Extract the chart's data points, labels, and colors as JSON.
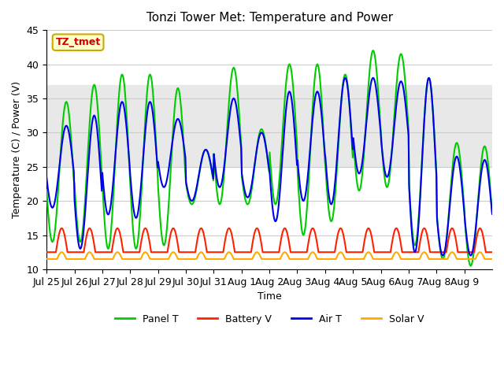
{
  "title": "Tonzi Tower Met: Temperature and Power",
  "xlabel": "Time",
  "ylabel": "Temperature (C) / Power (V)",
  "ylim": [
    10,
    45
  ],
  "n_days": 16,
  "xtick_labels": [
    "Jul 25",
    "Jul 26",
    "Jul 27",
    "Jul 28",
    "Jul 29",
    "Jul 30",
    "Jul 31",
    "Aug 1",
    "Aug 2",
    "Aug 3",
    "Aug 4",
    "Aug 5",
    "Aug 6",
    "Aug 7",
    "Aug 8",
    "Aug 9"
  ],
  "label_box_text": "TZ_tmet",
  "label_box_color": "#ffffcc",
  "label_box_edge_color": "#ccaa00",
  "label_text_color": "#cc0000",
  "series_panel_t_label": "Panel T",
  "series_panel_t_color": "#00cc00",
  "series_battery_v_label": "Battery V",
  "series_battery_v_color": "#ff2200",
  "series_air_t_label": "Air T",
  "series_air_t_color": "#0000ee",
  "series_solar_v_label": "Solar V",
  "series_solar_v_color": "#ffaa00",
  "linewidth": 1.5,
  "shaded_band": [
    25,
    37
  ],
  "shaded_color": "#e8e8e8",
  "background_color": "#ffffff",
  "grid_color": "#cccccc",
  "panel_t_peaks": [
    34.5,
    37.0,
    38.5,
    38.5,
    36.5,
    27.5,
    39.5,
    30.5,
    40.0,
    40.0,
    38.5,
    42.0,
    41.5,
    38.0,
    28.5,
    28.0
  ],
  "panel_t_troughs": [
    14.0,
    14.0,
    13.0,
    13.0,
    13.5,
    19.5,
    19.5,
    19.5,
    19.5,
    15.0,
    17.0,
    21.5,
    22.0,
    13.5,
    11.5,
    10.5
  ],
  "air_t_peaks": [
    31.0,
    32.5,
    34.5,
    34.5,
    32.0,
    27.5,
    35.0,
    30.0,
    36.0,
    36.0,
    38.0,
    38.0,
    37.5,
    38.0,
    26.5,
    26.0
  ],
  "air_t_troughs": [
    19.0,
    13.0,
    18.0,
    17.5,
    22.0,
    20.0,
    22.0,
    20.5,
    17.0,
    20.0,
    19.5,
    24.0,
    23.5,
    12.5,
    12.0,
    12.0
  ],
  "battery_v_base": 12.5,
  "battery_v_peak": 16.0,
  "solar_v_base": 11.5,
  "solar_v_peak": 12.5
}
